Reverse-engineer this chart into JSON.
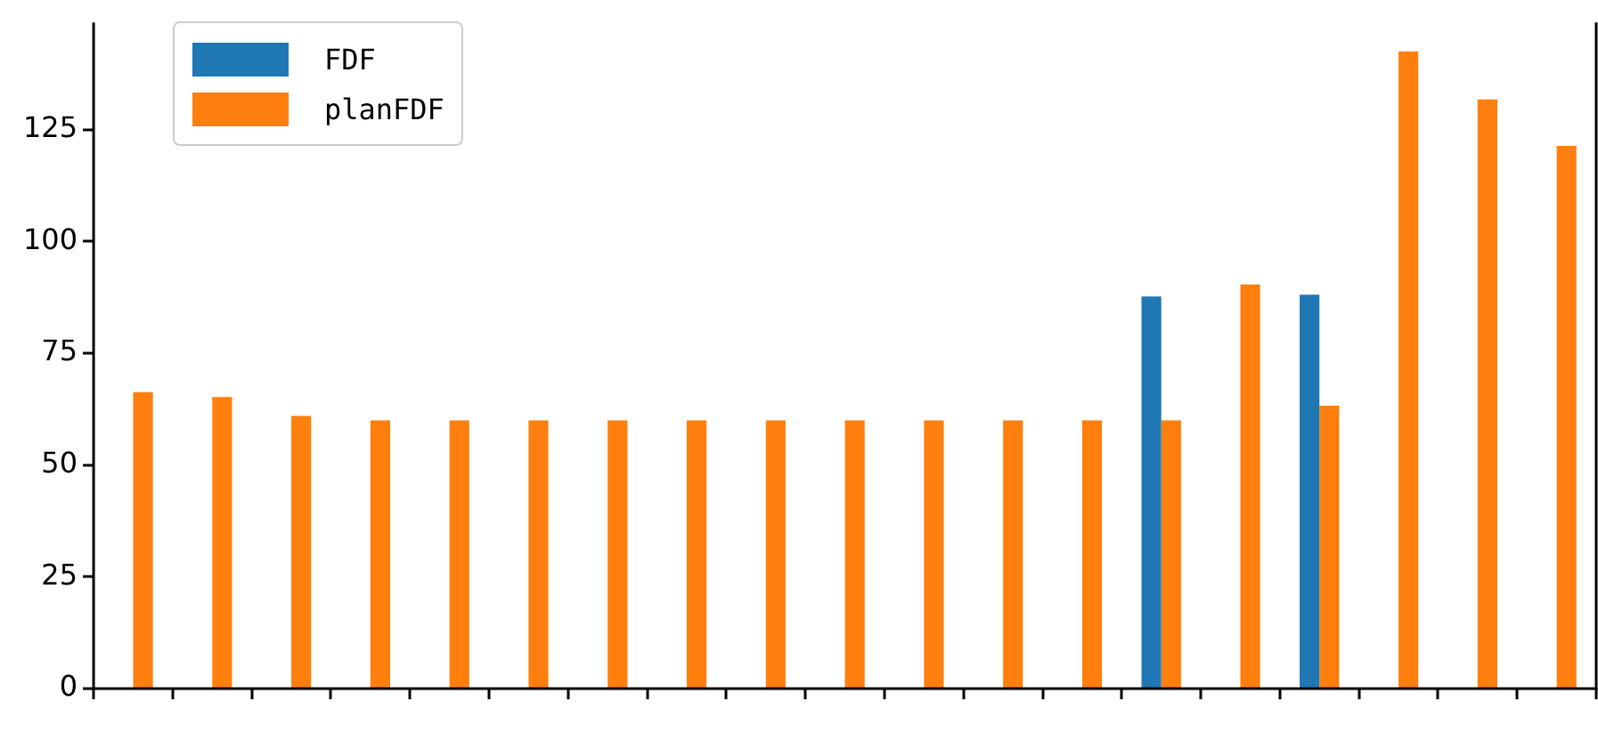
{
  "chart_data": {
    "type": "bar",
    "categories": [
      null,
      null,
      null,
      null,
      null,
      null,
      null,
      null,
      null,
      null,
      null,
      null,
      null,
      null,
      null,
      null,
      null,
      null,
      null
    ],
    "series": [
      {
        "name": "FDF",
        "color": "#1f77b4",
        "values": [
          null,
          null,
          null,
          null,
          null,
          null,
          null,
          null,
          null,
          null,
          null,
          null,
          null,
          87.7,
          null,
          88.1,
          null,
          null,
          null
        ]
      },
      {
        "name": "planFDF",
        "color": "#ff7f0e",
        "values": [
          66.3,
          65.2,
          61,
          60,
          60,
          60,
          60,
          60,
          60,
          60,
          60,
          60,
          60,
          60,
          90.4,
          63.3,
          142.5,
          131.8,
          121.4
        ]
      }
    ],
    "ylim": [
      0,
      149
    ],
    "yticks": [
      0,
      25,
      50,
      75,
      100,
      125
    ],
    "grid": false,
    "legend": "top left"
  }
}
